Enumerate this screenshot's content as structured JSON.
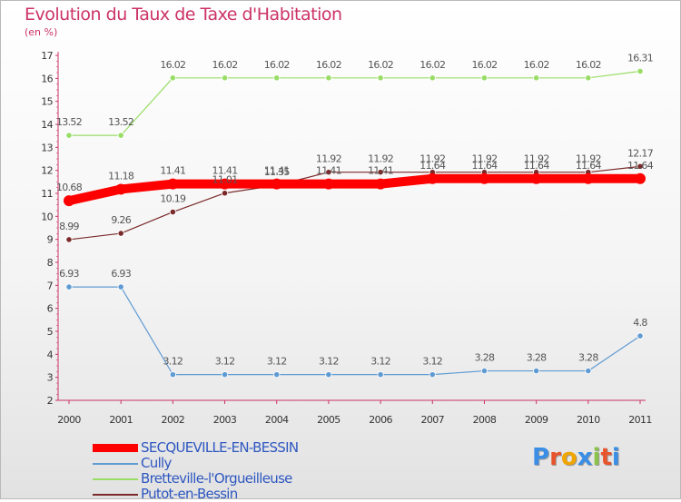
{
  "title": "Evolution du Taux de Taxe d'Habitation",
  "subtitle": "(en %)",
  "logo": {
    "text": "Proxiti",
    "colors": [
      "#3a8ee6",
      "#e8542c",
      "#f0a500",
      "#3a8ee6",
      "#8bc34a",
      "#e8542c",
      "#3a8ee6"
    ]
  },
  "chart_data": {
    "type": "line",
    "title": "Evolution du Taux de Taxe d'Habitation",
    "ylabel": "(en %)",
    "xlabel": "",
    "ylim": [
      2,
      17
    ],
    "yticks": [
      2,
      3,
      4,
      5,
      6,
      7,
      8,
      9,
      10,
      11,
      12,
      13,
      14,
      15,
      16,
      17
    ],
    "x": [
      "2000",
      "2001",
      "2002",
      "2003",
      "2004",
      "2005",
      "2006",
      "2007",
      "2008",
      "2009",
      "2010",
      "2011"
    ],
    "grid": false,
    "legend": "bottom-left",
    "series": [
      {
        "name": "SECQUEVILLE-EN-BESSIN",
        "color": "#ff0000",
        "width": 10,
        "values": [
          10.68,
          11.18,
          11.41,
          11.41,
          11.41,
          11.41,
          11.41,
          11.64,
          11.64,
          11.64,
          11.64,
          11.64
        ],
        "labels": [
          "10.68",
          "11.18",
          "11.41",
          "11.41",
          "11.41",
          "11.41",
          "11.41",
          "11.64",
          "11.64",
          "11.64",
          "11.64",
          "11.64"
        ]
      },
      {
        "name": "Cully",
        "color": "#5f9bd2",
        "width": 1.2,
        "values": [
          6.93,
          6.93,
          3.12,
          3.12,
          3.12,
          3.12,
          3.12,
          3.12,
          3.28,
          3.28,
          3.28,
          4.8
        ],
        "labels": [
          "6.93",
          "6.93",
          "3.12",
          "3.12",
          "3.12",
          "3.12",
          "3.12",
          "3.12",
          "3.28",
          "3.28",
          "3.28",
          "4.8"
        ]
      },
      {
        "name": "Bretteville-l'Orgueilleuse",
        "color": "#99dd66",
        "width": 1.2,
        "values": [
          13.52,
          13.52,
          16.02,
          16.02,
          16.02,
          16.02,
          16.02,
          16.02,
          16.02,
          16.02,
          16.02,
          16.31
        ],
        "labels": [
          "13.52",
          "13.52",
          "16.02",
          "16.02",
          "16.02",
          "16.02",
          "16.02",
          "16.02",
          "16.02",
          "16.02",
          "16.02",
          "16.31"
        ]
      },
      {
        "name": "Putot-en-Bessin",
        "color": "#7a2a2a",
        "width": 1.2,
        "values": [
          8.99,
          9.26,
          10.19,
          11.01,
          11.35,
          11.92,
          11.92,
          11.92,
          11.92,
          11.92,
          11.92,
          12.17
        ],
        "labels": [
          "8.99",
          "9.26",
          "10.19",
          "11.01",
          "11.35",
          "11.92",
          "11.92",
          "11.92",
          "11.92",
          "11.92",
          "11.92",
          "12.17"
        ]
      }
    ]
  }
}
